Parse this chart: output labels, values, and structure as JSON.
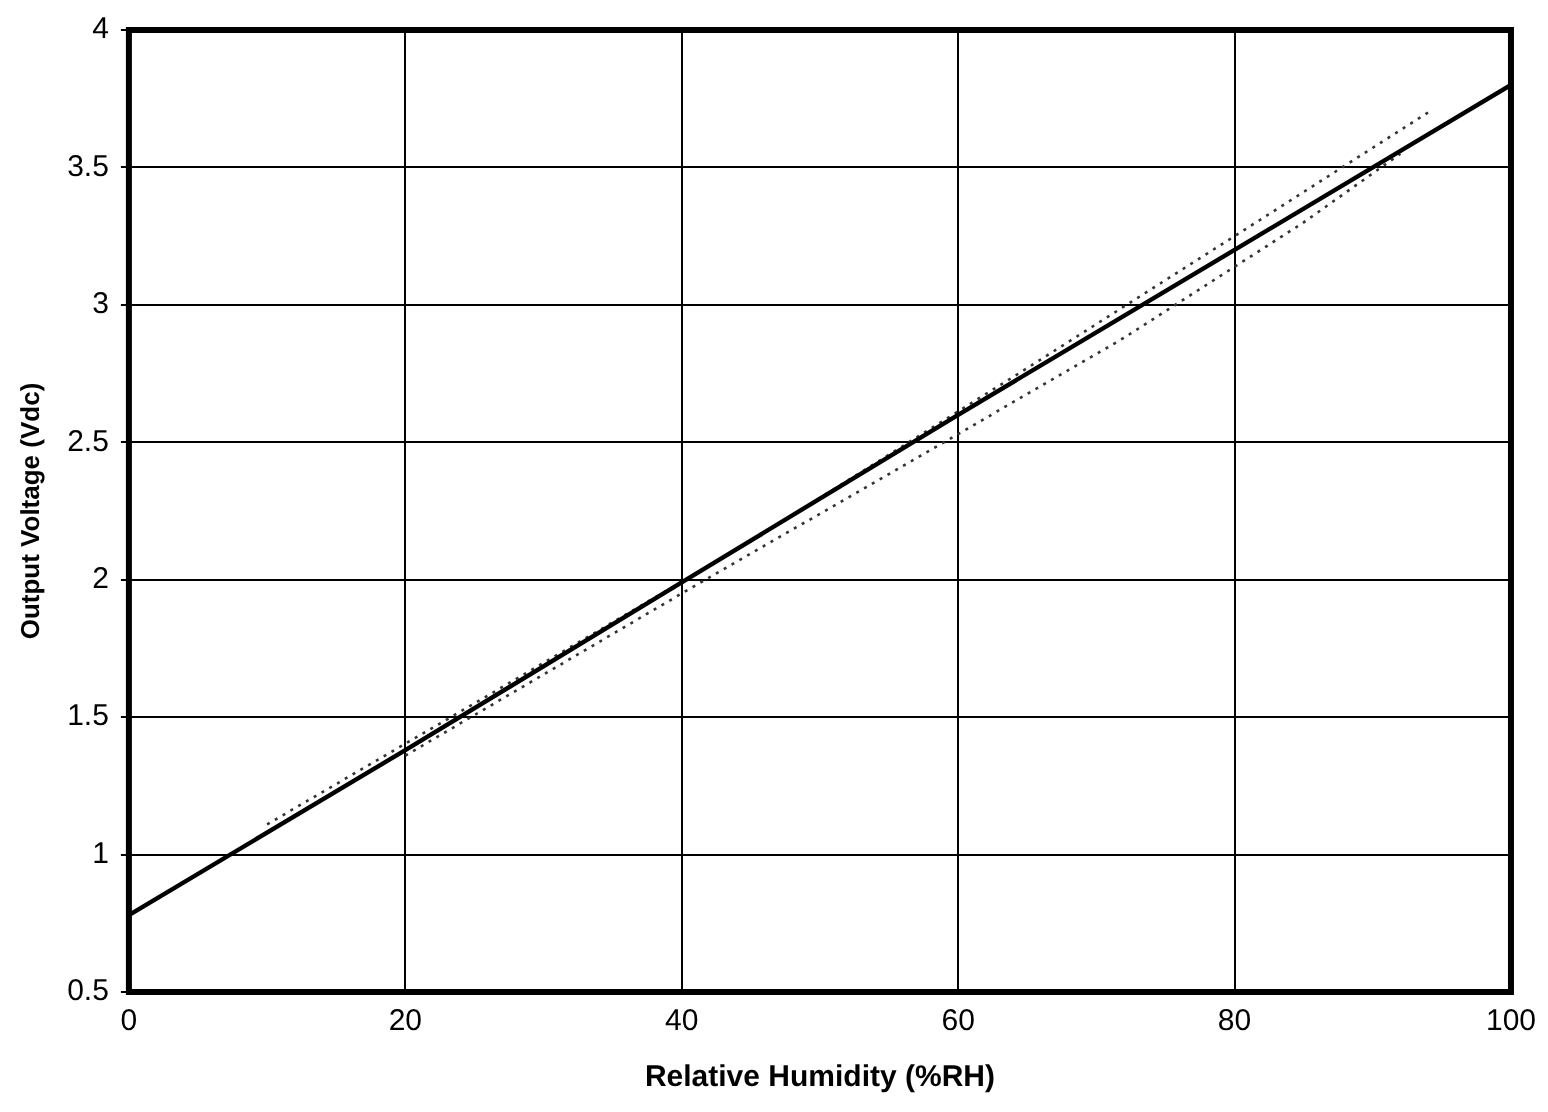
{
  "chart_data": {
    "type": "line",
    "xlabel": "Relative Humidity (%RH)",
    "ylabel": "Output Voltage (Vdc)",
    "xlim": [
      0,
      100
    ],
    "xticks": [
      0,
      20,
      40,
      60,
      80,
      100
    ],
    "ylim": [
      0.5,
      4
    ],
    "yticks": [
      0.5,
      1,
      1.5,
      2,
      2.5,
      3,
      3.5,
      4
    ],
    "grid": true,
    "legend": false,
    "marker": "none",
    "series": [
      {
        "color": "#000000",
        "line_style": "solid",
        "x": [
          0,
          20,
          40,
          60,
          80,
          100
        ],
        "values": [
          0.78,
          1.38,
          1.99,
          2.6,
          3.2,
          3.8
        ]
      },
      {
        "color": "#333333",
        "line_style": "dotted",
        "x": [
          10,
          25,
          45,
          65,
          80,
          94
        ],
        "values": [
          1.11,
          1.55,
          2.14,
          2.77,
          3.25,
          3.7
        ]
      },
      {
        "color": "#333333",
        "line_style": "dotted",
        "x": [
          20,
          40,
          60,
          72,
          85,
          92
        ],
        "values": [
          1.36,
          1.95,
          2.53,
          2.88,
          3.3,
          3.55
        ]
      }
    ]
  }
}
